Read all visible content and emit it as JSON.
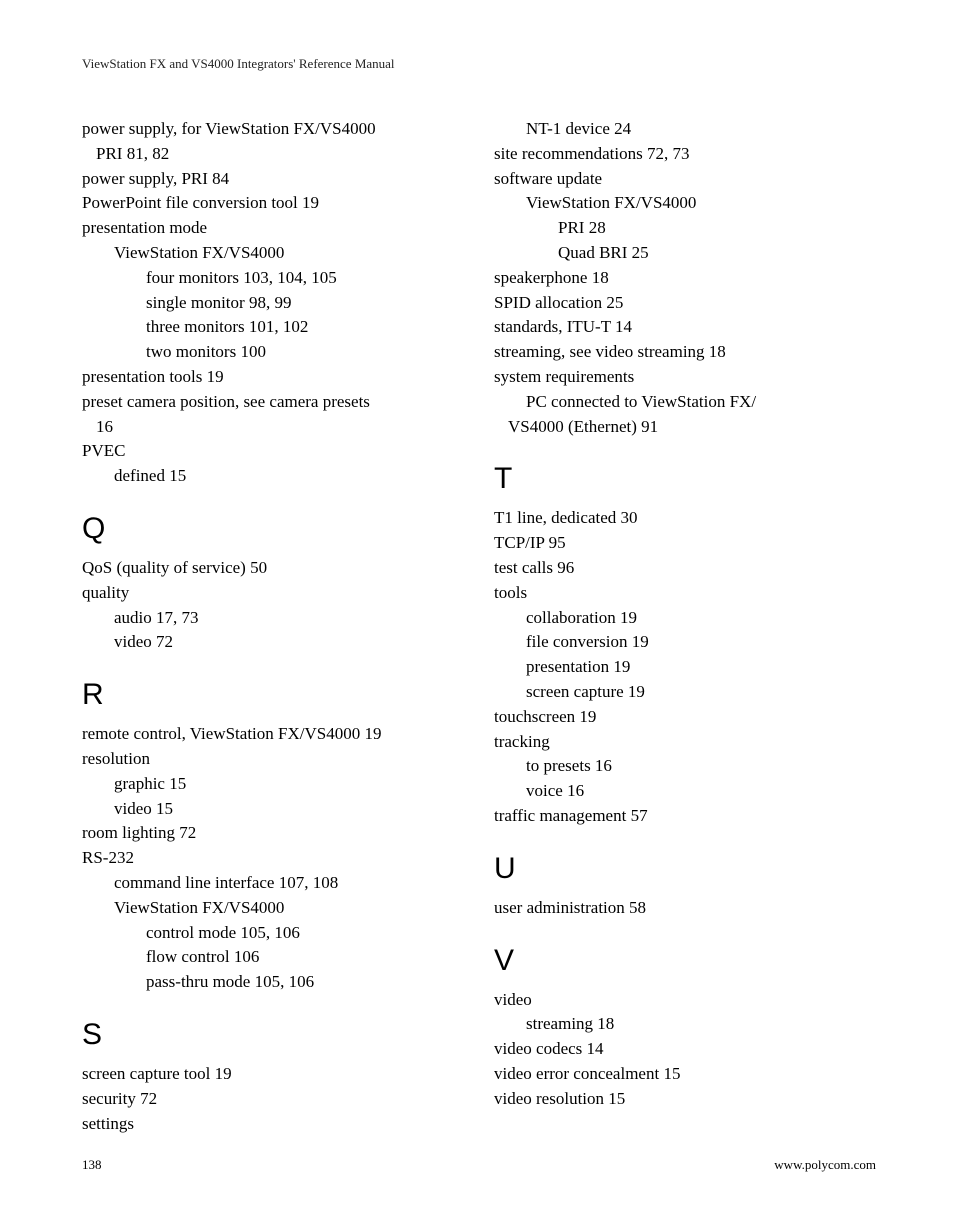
{
  "runningHeader": "ViewStation FX and VS4000 Integrators' Reference Manual",
  "footer": {
    "pageNumber": "138",
    "url": "www.polycom.com"
  },
  "colors": {
    "text": "#000000",
    "background": "#ffffff"
  },
  "typography": {
    "body_font": "Palatino Linotype",
    "body_size_pt": 17,
    "header_size_pt": 13,
    "section_letter_size_pt": 30,
    "section_letter_font": "Arial Narrow"
  },
  "leftColumn": [
    {
      "type": "entry",
      "indent": 1,
      "text": "power supply, for ViewStation FX/VS4000"
    },
    {
      "type": "entry",
      "indent": 1,
      "wrap": true,
      "text": "PRI 81, 82"
    },
    {
      "type": "entry",
      "indent": 1,
      "text": "power supply, PRI 84"
    },
    {
      "type": "entry",
      "indent": 1,
      "text": "PowerPoint file conversion tool 19"
    },
    {
      "type": "entry",
      "indent": 1,
      "text": "presentation mode"
    },
    {
      "type": "entry",
      "indent": 2,
      "text": "ViewStation FX/VS4000"
    },
    {
      "type": "entry",
      "indent": 3,
      "text": "four monitors 103, 104, 105"
    },
    {
      "type": "entry",
      "indent": 3,
      "text": "single monitor 98, 99"
    },
    {
      "type": "entry",
      "indent": 3,
      "text": "three monitors 101, 102"
    },
    {
      "type": "entry",
      "indent": 3,
      "text": "two monitors 100"
    },
    {
      "type": "entry",
      "indent": 1,
      "text": "presentation tools 19"
    },
    {
      "type": "entry",
      "indent": 1,
      "text": "preset camera position, see camera presets"
    },
    {
      "type": "entry",
      "indent": 1,
      "wrap": true,
      "text": "16"
    },
    {
      "type": "entry",
      "indent": 1,
      "text": "PVEC"
    },
    {
      "type": "entry",
      "indent": 2,
      "text": "defined 15"
    },
    {
      "type": "letter",
      "text": "Q"
    },
    {
      "type": "entry",
      "indent": 1,
      "text": "QoS (quality of service) 50"
    },
    {
      "type": "entry",
      "indent": 1,
      "text": "quality"
    },
    {
      "type": "entry",
      "indent": 2,
      "text": "audio 17, 73"
    },
    {
      "type": "entry",
      "indent": 2,
      "text": "video 72"
    },
    {
      "type": "letter",
      "text": "R"
    },
    {
      "type": "entry",
      "indent": 1,
      "text": "remote control, ViewStation FX/VS4000 19"
    },
    {
      "type": "entry",
      "indent": 1,
      "text": "resolution"
    },
    {
      "type": "entry",
      "indent": 2,
      "text": "graphic 15"
    },
    {
      "type": "entry",
      "indent": 2,
      "text": "video 15"
    },
    {
      "type": "entry",
      "indent": 1,
      "text": "room lighting 72"
    },
    {
      "type": "entry",
      "indent": 1,
      "text": "RS-232"
    },
    {
      "type": "entry",
      "indent": 2,
      "text": "command line interface 107, 108"
    },
    {
      "type": "entry",
      "indent": 2,
      "text": "ViewStation FX/VS4000"
    },
    {
      "type": "entry",
      "indent": 3,
      "text": "control mode 105, 106"
    },
    {
      "type": "entry",
      "indent": 3,
      "text": "flow control 106"
    },
    {
      "type": "entry",
      "indent": 3,
      "text": "pass-thru mode 105, 106"
    },
    {
      "type": "letter",
      "text": "S"
    },
    {
      "type": "entry",
      "indent": 1,
      "text": "screen capture tool 19"
    },
    {
      "type": "entry",
      "indent": 1,
      "text": "security 72"
    },
    {
      "type": "entry",
      "indent": 1,
      "text": "settings"
    }
  ],
  "rightColumn": [
    {
      "type": "entry",
      "indent": 2,
      "text": "NT-1 device 24"
    },
    {
      "type": "entry",
      "indent": 1,
      "text": "site recommendations 72, 73"
    },
    {
      "type": "entry",
      "indent": 1,
      "text": "software update"
    },
    {
      "type": "entry",
      "indent": 2,
      "text": "ViewStation FX/VS4000"
    },
    {
      "type": "entry",
      "indent": 3,
      "text": "PRI 28"
    },
    {
      "type": "entry",
      "indent": 3,
      "text": "Quad BRI 25"
    },
    {
      "type": "entry",
      "indent": 1,
      "text": "speakerphone 18"
    },
    {
      "type": "entry",
      "indent": 1,
      "text": "SPID allocation 25"
    },
    {
      "type": "entry",
      "indent": 1,
      "text": "standards, ITU-T 14"
    },
    {
      "type": "entry",
      "indent": 1,
      "text": "streaming, see video streaming 18"
    },
    {
      "type": "entry",
      "indent": 1,
      "text": "system requirements"
    },
    {
      "type": "entry",
      "indent": 2,
      "text": "PC connected to ViewStation FX/"
    },
    {
      "type": "entry",
      "indent": 2,
      "wrap": true,
      "text": "VS4000 (Ethernet) 91"
    },
    {
      "type": "letter",
      "text": "T"
    },
    {
      "type": "entry",
      "indent": 1,
      "text": "T1 line, dedicated 30"
    },
    {
      "type": "entry",
      "indent": 1,
      "text": "TCP/IP 95"
    },
    {
      "type": "entry",
      "indent": 1,
      "text": "test calls 96"
    },
    {
      "type": "entry",
      "indent": 1,
      "text": "tools"
    },
    {
      "type": "entry",
      "indent": 2,
      "text": "collaboration 19"
    },
    {
      "type": "entry",
      "indent": 2,
      "text": "file conversion 19"
    },
    {
      "type": "entry",
      "indent": 2,
      "text": "presentation 19"
    },
    {
      "type": "entry",
      "indent": 2,
      "text": "screen capture 19"
    },
    {
      "type": "entry",
      "indent": 1,
      "text": "touchscreen 19"
    },
    {
      "type": "entry",
      "indent": 1,
      "text": "tracking"
    },
    {
      "type": "entry",
      "indent": 2,
      "text": "to presets 16"
    },
    {
      "type": "entry",
      "indent": 2,
      "text": "voice 16"
    },
    {
      "type": "entry",
      "indent": 1,
      "text": "traffic management 57"
    },
    {
      "type": "letter",
      "text": "U"
    },
    {
      "type": "entry",
      "indent": 1,
      "text": "user administration 58"
    },
    {
      "type": "letter",
      "text": "V"
    },
    {
      "type": "entry",
      "indent": 1,
      "text": "video"
    },
    {
      "type": "entry",
      "indent": 2,
      "text": "streaming 18"
    },
    {
      "type": "entry",
      "indent": 1,
      "text": "video codecs 14"
    },
    {
      "type": "entry",
      "indent": 1,
      "text": "video error concealment 15"
    },
    {
      "type": "entry",
      "indent": 1,
      "text": "video resolution 15"
    }
  ]
}
